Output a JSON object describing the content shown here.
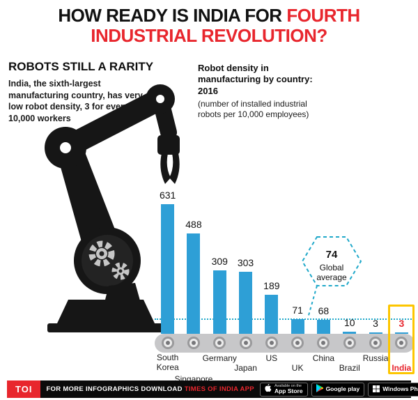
{
  "colors": {
    "red": "#e8262d",
    "bar_blue": "#2e9fd6",
    "teal": "#1fa8c9",
    "yellow": "#fdc600"
  },
  "headline": {
    "black": "HOW READY IS INDIA FOR",
    "red1": "FOURTH",
    "red2": "INDUSTRIAL REVOLUTION?"
  },
  "left_panel": {
    "heading": "ROBOTS STILL A RARITY",
    "body": "India, the sixth-largest manufacturing country, has very low robot density, 3 for every 10,000 workers"
  },
  "chart_data": {
    "type": "bar",
    "title": "Robot density in manufacturing by country: 2016",
    "subtitle": "(number of installed industrial robots per 10,000 employees)",
    "categories": [
      "South Korea",
      "Singapore",
      "Germany",
      "Japan",
      "US",
      "UK",
      "China",
      "Brazil",
      "Russia",
      "India"
    ],
    "values": [
      631,
      488,
      309,
      303,
      189,
      71,
      68,
      10,
      3,
      3
    ],
    "global_average": 74,
    "global_average_label": "Global average",
    "bar_color": "#2e9fd6",
    "highlight_country": "India",
    "highlight_color": "#e8262d",
    "ylim": [
      0,
      650
    ],
    "grid": false,
    "legend": false
  },
  "footer": {
    "logo": "TOI",
    "download_text": "FOR MORE  INFOGRAPHICS DOWNLOAD",
    "app_name": "TIMES OF INDIA APP",
    "badges": [
      {
        "line1": "Available on the",
        "line2": "App Store"
      },
      {
        "line1": "",
        "line2": "Google play"
      },
      {
        "line1": "",
        "line2": "Windows Phone"
      }
    ]
  }
}
